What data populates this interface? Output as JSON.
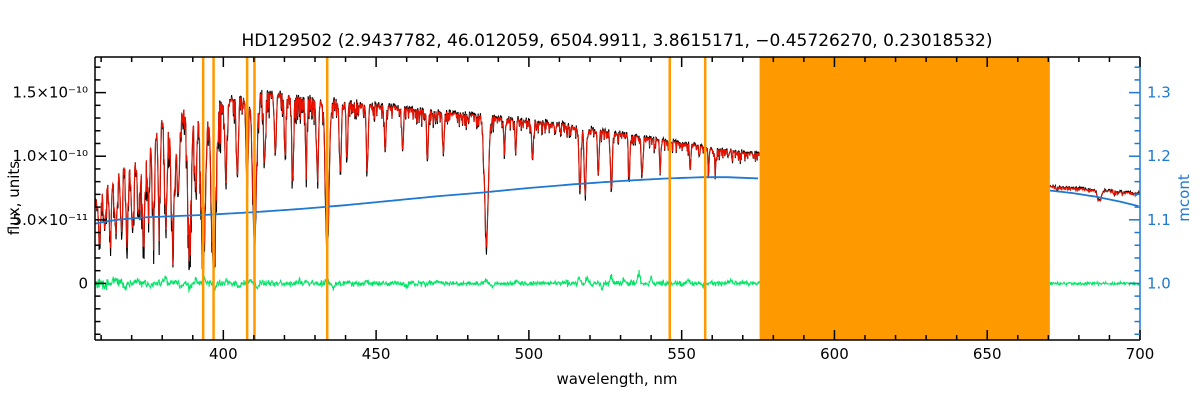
{
  "page": {
    "background": "#ffffff"
  },
  "chart_data": {
    "type": "line",
    "title": "HD129502  (2.9437782, 46.012059, 6504.9911, 3.8615171, −0.45726270, 0.23018532)",
    "xlabel": "wavelength, nm",
    "ylabel_left": "flux, units",
    "ylabel_right": "mcont",
    "xlim": [
      358,
      700
    ],
    "ylim_left": [
      -4.45e-11,
      1.78e-10
    ],
    "ylim_right": [
      0.911,
      1.356
    ],
    "grid": false,
    "legend": "none",
    "x_ticks": {
      "major": [
        400,
        450,
        500,
        550,
        600,
        650,
        700
      ],
      "labels": [
        "400",
        "450",
        "500",
        "550",
        "600",
        "650",
        "700"
      ],
      "minor_step": 10
    },
    "y_ticks_left": {
      "major": [
        0,
        5e-11,
        1e-10,
        1.5e-10
      ],
      "labels": [
        "0",
        "5.0×10⁻¹¹",
        "1.0×10⁻¹⁰",
        "1.5×10⁻¹⁰"
      ],
      "minor_step": 1e-11
    },
    "y_ticks_right": {
      "major": [
        1.0,
        1.1,
        1.2,
        1.3
      ],
      "labels": [
        "1.0",
        "1.1",
        "1.2",
        "1.3"
      ],
      "minor_step": 0.02
    },
    "colors": {
      "observed": "#000000",
      "fit": "#ee1100",
      "continuum": "#1f78d1",
      "residual": "#00e566",
      "mask": "#ff9900",
      "axes": "#000000"
    },
    "series": {
      "seed": 42,
      "segments": [
        [
          358,
          575.5
        ],
        [
          670.5,
          700
        ]
      ],
      "envelope_flux": [
        [
          358,
          6.6e-11
        ],
        [
          360,
          7.6e-11
        ],
        [
          362,
          8.4e-11
        ],
        [
          364,
          9.2e-11
        ],
        [
          366,
          1e-10
        ],
        [
          368,
          1.08e-10
        ],
        [
          370,
          1.15e-10
        ],
        [
          372,
          1.22e-10
        ],
        [
          374,
          1.28e-10
        ],
        [
          376,
          1.33e-10
        ],
        [
          378,
          1.36e-10
        ],
        [
          380,
          1.38e-10
        ],
        [
          383,
          1.4e-10
        ],
        [
          386,
          1.41e-10
        ],
        [
          390,
          1.42e-10
        ],
        [
          394,
          1.43e-10
        ],
        [
          398,
          1.44e-10
        ],
        [
          402,
          1.46e-10
        ],
        [
          406,
          1.48e-10
        ],
        [
          410,
          1.5e-10
        ],
        [
          414,
          1.51e-10
        ],
        [
          418,
          1.5e-10
        ],
        [
          424,
          1.48e-10
        ],
        [
          430,
          1.46e-10
        ],
        [
          436,
          1.44e-10
        ],
        [
          442,
          1.43e-10
        ],
        [
          448,
          1.41e-10
        ],
        [
          455,
          1.4e-10
        ],
        [
          462,
          1.38e-10
        ],
        [
          470,
          1.36e-10
        ],
        [
          478,
          1.34e-10
        ],
        [
          486,
          1.32e-10
        ],
        [
          494,
          1.3e-10
        ],
        [
          502,
          1.28e-10
        ],
        [
          510,
          1.26e-10
        ],
        [
          518,
          1.23e-10
        ],
        [
          526,
          1.2e-10
        ],
        [
          534,
          1.17e-10
        ],
        [
          542,
          1.14e-10
        ],
        [
          550,
          1.11e-10
        ],
        [
          558,
          1.08e-10
        ],
        [
          566,
          1.05e-10
        ],
        [
          575.5,
          1.02e-10
        ],
        [
          670.5,
          7.7e-11
        ],
        [
          678,
          7.5e-11
        ],
        [
          686,
          7.35e-11
        ],
        [
          694,
          7.2e-11
        ],
        [
          700,
          7.1e-11
        ]
      ],
      "absorption_lines": [
        [
          359.5,
          0.5,
          0.4
        ],
        [
          361.2,
          0.45,
          0.35
        ],
        [
          363.0,
          0.5,
          0.4
        ],
        [
          364.8,
          0.55,
          0.45
        ],
        [
          366.6,
          0.5,
          0.4
        ],
        [
          368.5,
          0.55,
          0.45
        ],
        [
          370.3,
          0.6,
          0.5
        ],
        [
          372.2,
          0.55,
          0.45
        ],
        [
          373.9,
          0.65,
          0.5
        ],
        [
          375.5,
          0.5,
          0.4
        ],
        [
          377.1,
          0.6,
          0.45
        ],
        [
          379.0,
          0.55,
          0.4
        ],
        [
          381.2,
          0.6,
          0.45
        ],
        [
          383.5,
          0.68,
          0.55
        ],
        [
          385.2,
          0.5,
          0.4
        ],
        [
          388.9,
          0.72,
          0.6
        ],
        [
          391.0,
          0.45,
          0.35
        ],
        [
          393.4,
          0.86,
          0.7
        ],
        [
          396.8,
          0.9,
          0.7
        ],
        [
          400.8,
          0.4,
          0.3
        ],
        [
          404.6,
          0.45,
          0.3
        ],
        [
          407.8,
          0.5,
          0.35
        ],
        [
          410.2,
          0.78,
          0.6
        ],
        [
          413.5,
          0.35,
          0.3
        ],
        [
          417.0,
          0.3,
          0.3
        ],
        [
          420.2,
          0.3,
          0.25
        ],
        [
          422.7,
          0.45,
          0.3
        ],
        [
          427.1,
          0.35,
          0.25
        ],
        [
          430.8,
          0.4,
          0.35
        ],
        [
          434.0,
          0.78,
          0.6
        ],
        [
          438.3,
          0.4,
          0.3
        ],
        [
          440.5,
          0.3,
          0.25
        ],
        [
          447.1,
          0.35,
          0.3
        ],
        [
          453.0,
          0.25,
          0.25
        ],
        [
          458.7,
          0.25,
          0.25
        ],
        [
          466.8,
          0.3,
          0.25
        ],
        [
          472.0,
          0.25,
          0.25
        ],
        [
          486.1,
          0.76,
          0.6
        ],
        [
          492.0,
          0.2,
          0.25
        ],
        [
          495.7,
          0.2,
          0.2
        ],
        [
          501.2,
          0.25,
          0.25
        ],
        [
          516.7,
          0.42,
          0.3
        ],
        [
          518.4,
          0.42,
          0.3
        ],
        [
          522.7,
          0.3,
          0.25
        ],
        [
          527.0,
          0.38,
          0.3
        ],
        [
          532.8,
          0.3,
          0.25
        ],
        [
          537.1,
          0.25,
          0.25
        ],
        [
          543.0,
          0.2,
          0.2
        ],
        [
          552.8,
          0.2,
          0.2
        ],
        [
          558.8,
          0.18,
          0.2
        ],
        [
          561.0,
          0.15,
          0.2
        ],
        [
          686.7,
          0.12,
          0.6
        ]
      ],
      "noise_forest": [
        [
          358,
          400,
          0.3
        ],
        [
          400,
          430,
          0.15
        ],
        [
          430,
          480,
          0.1
        ],
        [
          480,
          575.5,
          0.09
        ],
        [
          670.5,
          700,
          0.04
        ]
      ],
      "continuum_mcont": [
        [
          358,
          1.094
        ],
        [
          365,
          1.1
        ],
        [
          375,
          1.104
        ],
        [
          385,
          1.106
        ],
        [
          395,
          1.108
        ],
        [
          410,
          1.112
        ],
        [
          425,
          1.117
        ],
        [
          440,
          1.123
        ],
        [
          455,
          1.13
        ],
        [
          470,
          1.137
        ],
        [
          485,
          1.143
        ],
        [
          500,
          1.15
        ],
        [
          515,
          1.156
        ],
        [
          530,
          1.161
        ],
        [
          545,
          1.165
        ],
        [
          557,
          1.167
        ],
        [
          565,
          1.167
        ],
        [
          575.5,
          1.165
        ],
        [
          670.5,
          1.146
        ],
        [
          678,
          1.142
        ],
        [
          686,
          1.136
        ],
        [
          694,
          1.128
        ],
        [
          700,
          1.121
        ]
      ],
      "residual_amp": [
        [
          358,
          368,
          3.5e-12
        ],
        [
          368,
          400,
          2.2e-12
        ],
        [
          400,
          470,
          1.8e-12
        ],
        [
          470,
          512,
          1.3e-12
        ],
        [
          512,
          545,
          2e-12
        ],
        [
          545,
          575.5,
          1.5e-12
        ],
        [
          670.5,
          700,
          1e-12
        ]
      ],
      "residual_spikes": [
        [
          361,
          -4e-12
        ],
        [
          364,
          4e-12
        ],
        [
          368,
          -5e-12
        ],
        [
          372,
          4e-12
        ],
        [
          376,
          -4e-12
        ],
        [
          381,
          5e-12
        ],
        [
          386,
          -4e-12
        ],
        [
          389,
          -6e-12
        ],
        [
          391,
          4e-12
        ],
        [
          393.8,
          5e-12
        ],
        [
          397.2,
          -6e-12
        ],
        [
          401,
          4e-12
        ],
        [
          405,
          -5e-12
        ],
        [
          409,
          4e-12
        ],
        [
          411,
          -4e-12
        ],
        [
          425,
          3e-12
        ],
        [
          434,
          4e-12
        ],
        [
          436,
          -4e-12
        ],
        [
          447,
          3e-12
        ],
        [
          460,
          -3e-12
        ],
        [
          470,
          3e-12
        ],
        [
          486,
          4e-12
        ],
        [
          488,
          -4e-12
        ],
        [
          496,
          3e-12
        ],
        [
          516.5,
          9e-12
        ],
        [
          519,
          7e-12
        ],
        [
          524,
          -5e-12
        ],
        [
          527,
          8e-12
        ],
        [
          531,
          6e-12
        ],
        [
          536,
          1.1e-11
        ],
        [
          540,
          6e-12
        ],
        [
          552,
          4e-12
        ],
        [
          557,
          -3e-12
        ],
        [
          566,
          3e-12
        ]
      ],
      "masked_lines": [
        393.4,
        396.8,
        407.8,
        410.2,
        434.0,
        546.1,
        557.7
      ],
      "masked_band": [
        575.5,
        670.5
      ]
    }
  }
}
